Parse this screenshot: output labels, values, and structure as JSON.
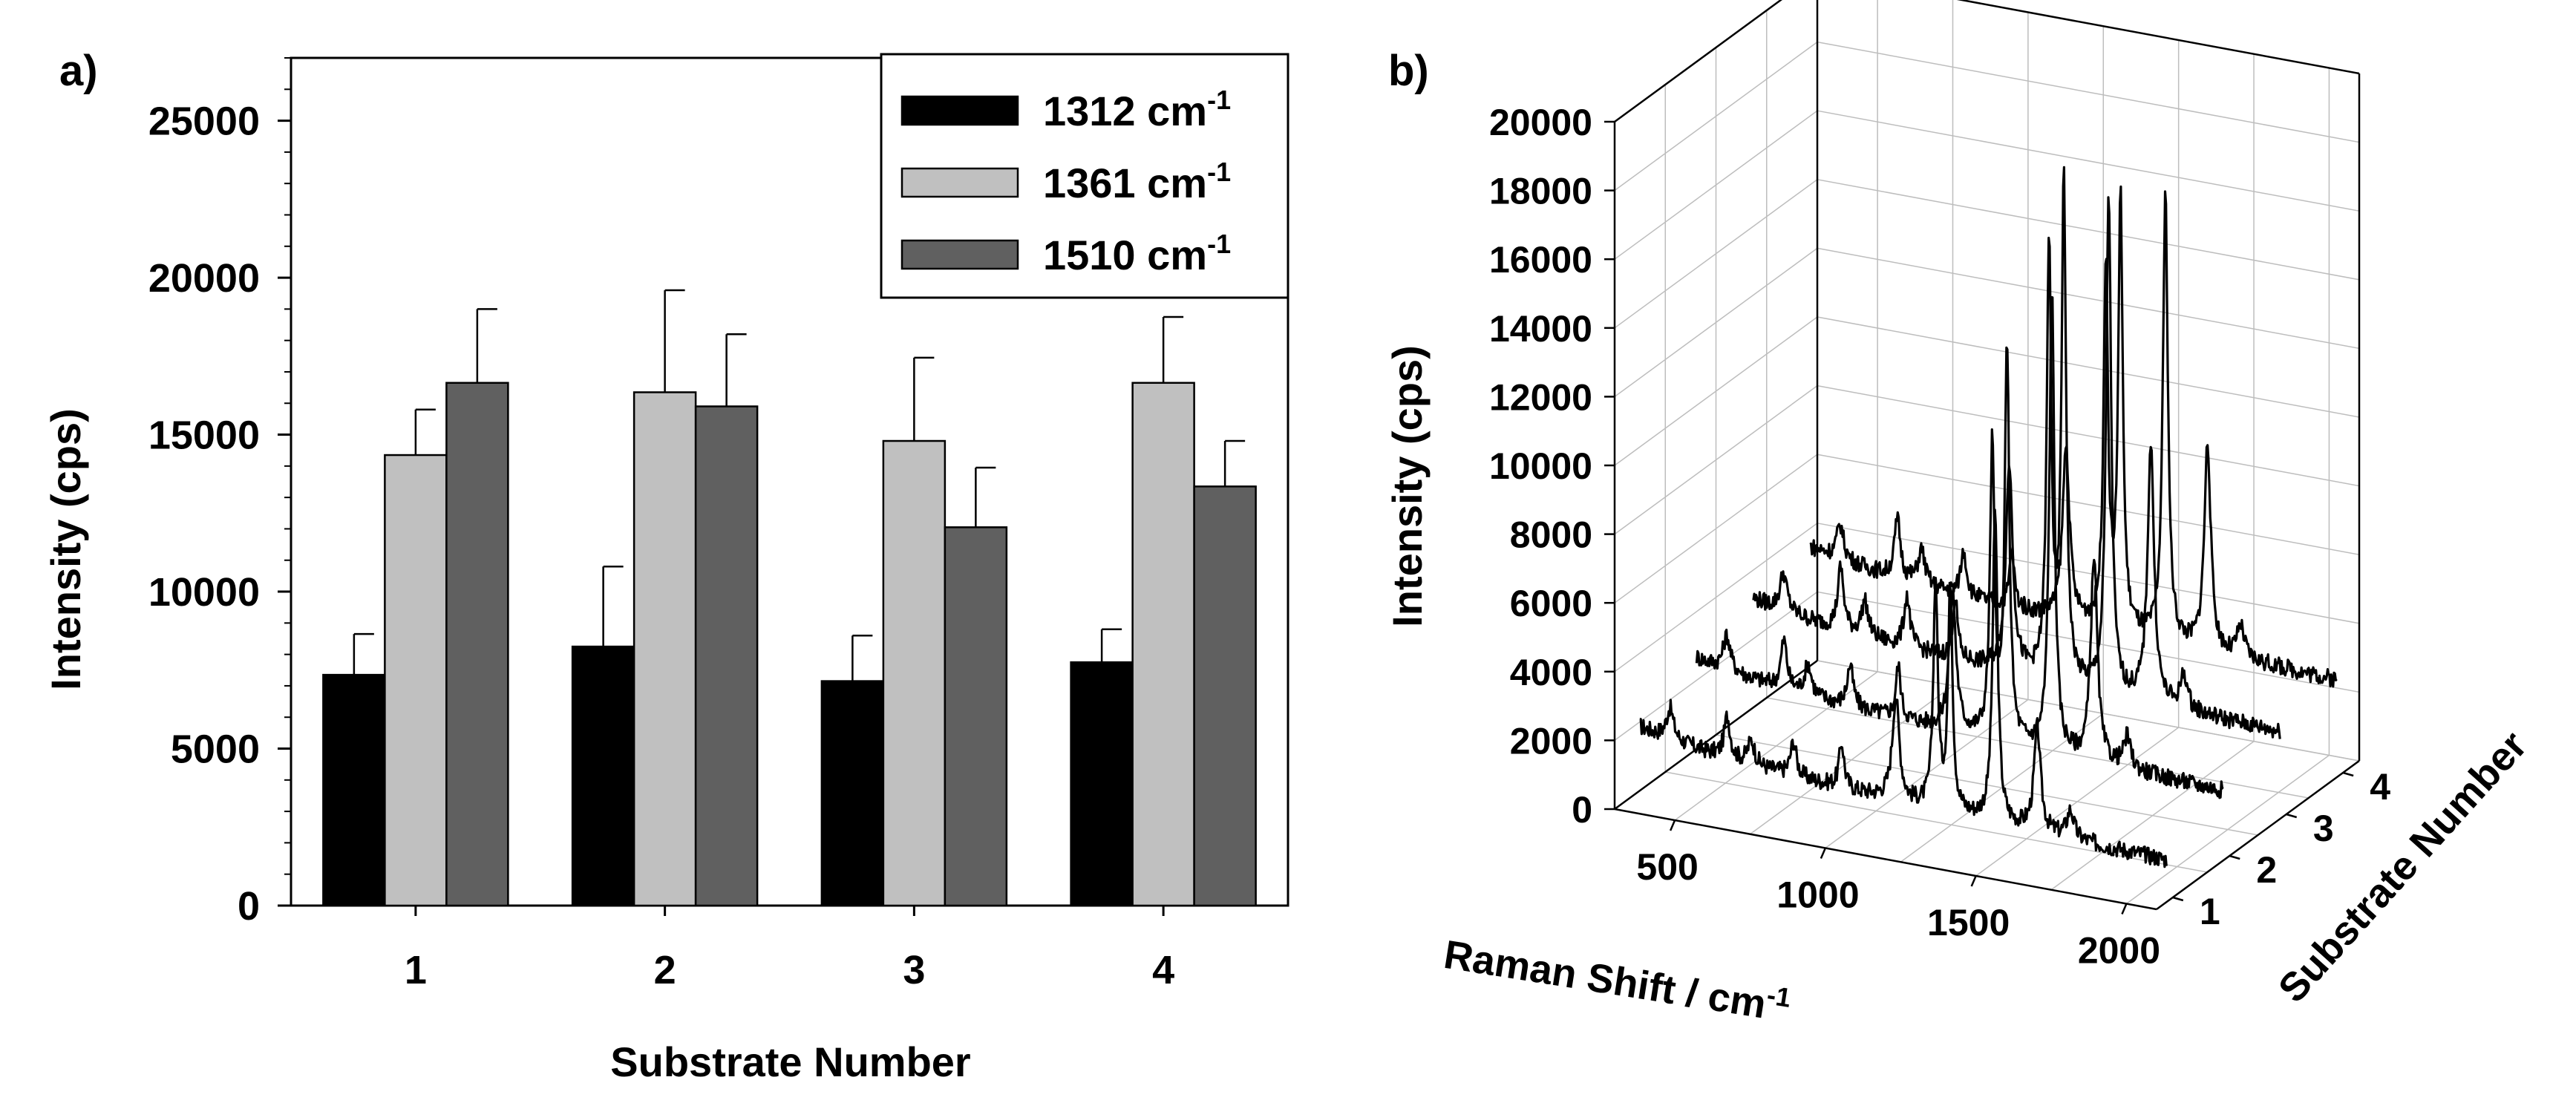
{
  "panel_a": {
    "label": "a)",
    "chart_data": {
      "type": "bar",
      "title": "",
      "xlabel": "Substrate Number",
      "ylabel": "Intensity (cps)",
      "categories": [
        "1",
        "2",
        "3",
        "4"
      ],
      "ylim": [
        0,
        27000
      ],
      "yticks": [
        0,
        5000,
        10000,
        15000,
        20000,
        25000
      ],
      "ytick_labels": [
        "0",
        "5000",
        "10000",
        "15000",
        "20000",
        "25000"
      ],
      "series": [
        {
          "name": "1312 cm",
          "superscript": "-1",
          "color": "#000000",
          "values": [
            7350,
            8250,
            7150,
            7750
          ],
          "errors": [
            1300,
            2550,
            1450,
            1050
          ]
        },
        {
          "name": "1361 cm",
          "superscript": "-1",
          "color": "#c0c0c0",
          "values": [
            14350,
            16350,
            14800,
            16650
          ],
          "errors": [
            1450,
            3250,
            2650,
            2100
          ]
        },
        {
          "name": "1510 cm",
          "superscript": "-1",
          "color": "#606060",
          "values": [
            16650,
            15900,
            12050,
            13350
          ],
          "errors": [
            2350,
            2300,
            1900,
            1450
          ]
        }
      ],
      "legend_position": "top-right"
    }
  },
  "panel_b": {
    "label": "b)",
    "chart_data": {
      "type": "line",
      "subtype": "3d-waterfall",
      "title": "",
      "xlabel": "Raman Shift / cm",
      "xlabel_superscript": "-1",
      "ylabel": "Intensity (cps)",
      "zlabel": "Substrate Number",
      "xlim": [
        300,
        2100
      ],
      "xticks": [
        500,
        1000,
        1500,
        2000
      ],
      "xtick_labels": [
        "500",
        "1000",
        "1500",
        "2000"
      ],
      "ylim": [
        0,
        20000
      ],
      "yticks": [
        0,
        2000,
        4000,
        6000,
        8000,
        10000,
        12000,
        14000,
        16000,
        18000,
        20000
      ],
      "ytick_labels": [
        "0",
        "2000",
        "4000",
        "6000",
        "8000",
        "10000",
        "12000",
        "14000",
        "16000",
        "18000",
        "20000"
      ],
      "ztick_labels": [
        "1",
        "2",
        "3",
        "4"
      ],
      "baseline_intensity": [
        1500,
        2300,
        2800,
        3100
      ],
      "peaks_cm": [
        430,
        620,
        700,
        840,
        1000,
        1180,
        1312,
        1361,
        1510,
        1650,
        1760
      ],
      "peak_heights": [
        [
          900,
          1200,
          700,
          1000,
          1300,
          3000,
          6500,
          6500,
          9000,
          3000,
          800
        ],
        [
          1000,
          1400,
          900,
          1200,
          1500,
          4000,
          8500,
          11500,
          13500,
          6000,
          900
        ],
        [
          1100,
          1800,
          1000,
          1500,
          1800,
          6000,
          12500,
          14500,
          14500,
          7500,
          1000
        ],
        [
          1000,
          1700,
          1000,
          1300,
          1600,
          5000,
          10500,
          12500,
          13000,
          6000,
          900
        ]
      ]
    }
  }
}
